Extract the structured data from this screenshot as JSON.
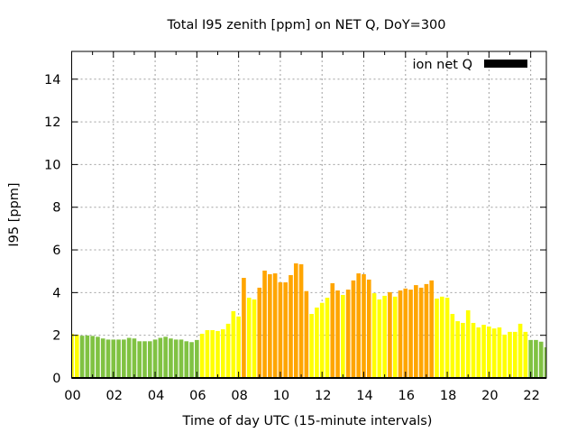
{
  "chart_data": {
    "type": "bar",
    "title": "Total I95 zenith [ppm] on NET Q, DoY=300",
    "xlabel": "Time of day UTC (15-minute intervals)",
    "ylabel": "I95 [ppm]",
    "xlim": [
      0,
      22.75
    ],
    "ylim": [
      0,
      15.3
    ],
    "x_units": "hours",
    "grid": true,
    "x_ticks": [
      0,
      2,
      4,
      6,
      8,
      10,
      12,
      14,
      16,
      18,
      20,
      22
    ],
    "x_tick_labels": [
      "00",
      "02",
      "04",
      "06",
      "08",
      "10",
      "12",
      "14",
      "16",
      "18",
      "20",
      "22"
    ],
    "y_ticks": [
      0,
      2,
      4,
      6,
      8,
      10,
      12,
      14
    ],
    "y_tick_labels": [
      "0",
      "2",
      "4",
      "6",
      "8",
      "10",
      "12",
      "14"
    ],
    "legend": {
      "label": "ion net Q",
      "position": "top-right",
      "color": "#000000"
    },
    "color_scale": [
      {
        "below": 2,
        "color": "#80c242"
      },
      {
        "below": 4,
        "color": "#ffff00"
      },
      {
        "below": 6,
        "color": "#ffa500"
      }
    ],
    "series": [
      {
        "name": "ion net Q",
        "x_step_hours": 0.25,
        "values": [
          2.07,
          2.03,
          1.98,
          1.99,
          1.97,
          1.93,
          1.85,
          1.8,
          1.8,
          1.8,
          1.8,
          1.88,
          1.85,
          1.72,
          1.72,
          1.72,
          1.8,
          1.88,
          1.93,
          1.85,
          1.8,
          1.8,
          1.72,
          1.68,
          1.78,
          2.07,
          2.24,
          2.24,
          2.2,
          2.28,
          2.54,
          3.13,
          2.88,
          4.69,
          3.76,
          3.68,
          4.23,
          5.03,
          4.86,
          4.9,
          4.48,
          4.48,
          4.82,
          5.37,
          5.33,
          4.07,
          3.0,
          3.3,
          3.52,
          3.76,
          4.44,
          4.1,
          3.89,
          4.14,
          4.57,
          4.9,
          4.86,
          4.61,
          3.97,
          3.68,
          3.85,
          4.02,
          3.81,
          4.1,
          4.19,
          4.14,
          4.35,
          4.23,
          4.4,
          4.57,
          3.72,
          3.81,
          3.76,
          3.0,
          2.66,
          2.58,
          3.17,
          2.58,
          2.37,
          2.49,
          2.41,
          2.32,
          2.37,
          2.03,
          2.16,
          2.16,
          2.54,
          2.16,
          1.78,
          1.78,
          1.7,
          1.44
        ]
      }
    ]
  }
}
